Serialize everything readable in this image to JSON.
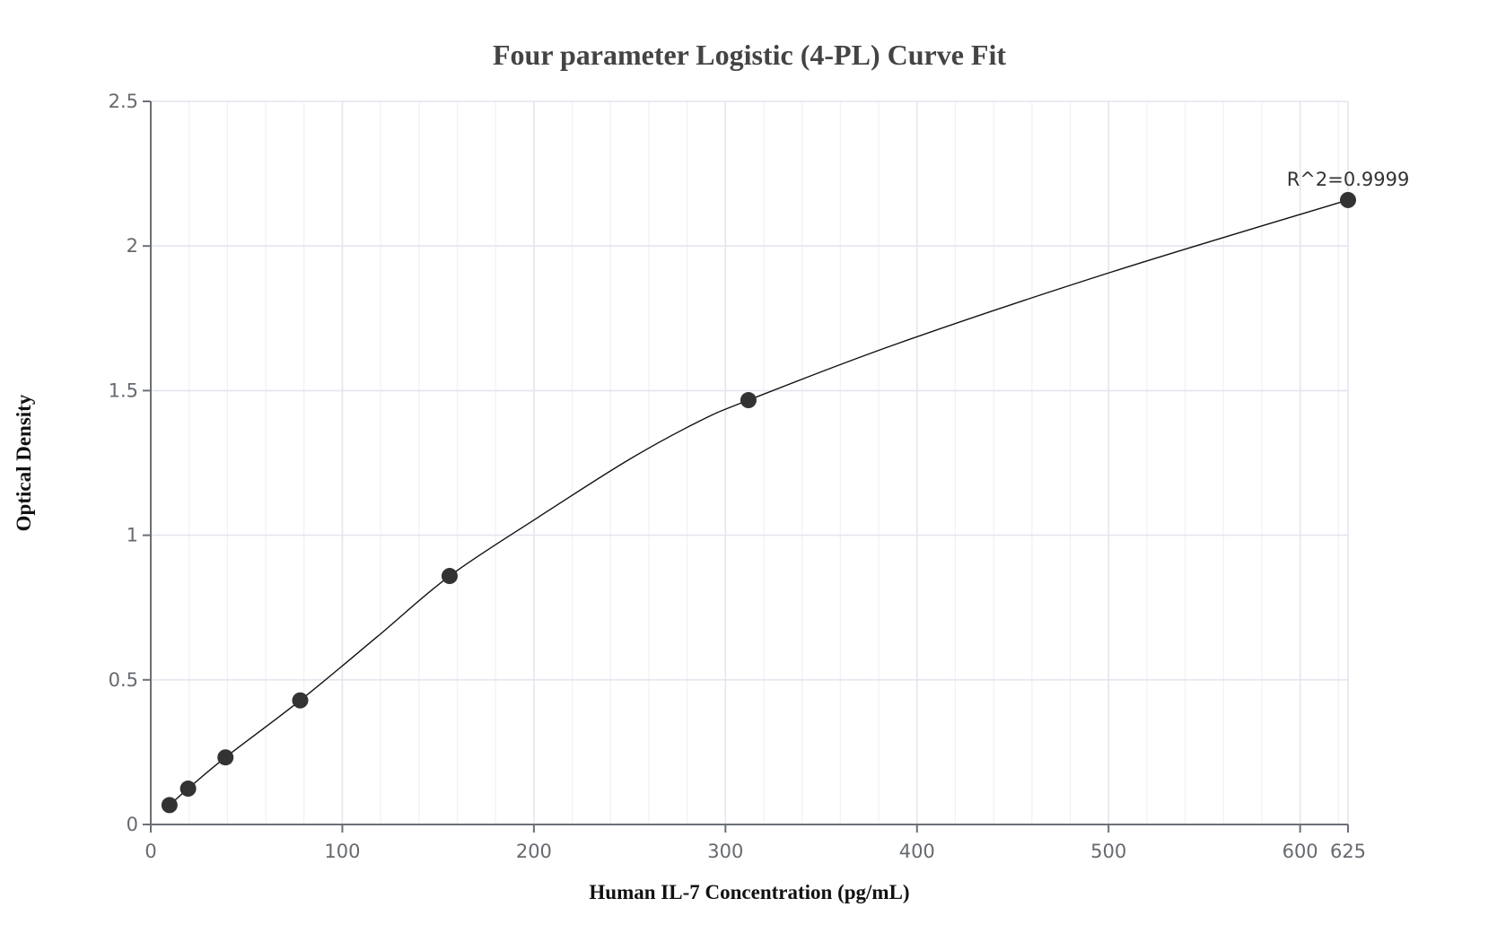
{
  "chart_data": {
    "type": "scatter",
    "title": "Four parameter Logistic (4-PL) Curve Fit",
    "xlabel": "Human IL-7 Concentration (pg/mL)",
    "ylabel": "Optical Density",
    "xlim": [
      0,
      625
    ],
    "ylim": [
      0,
      2.5
    ],
    "x_ticks": [
      0,
      100,
      200,
      300,
      400,
      500,
      600,
      625
    ],
    "x_tick_labels": [
      "0",
      "100",
      "200",
      "300",
      "400",
      "500",
      "600",
      "625"
    ],
    "y_ticks": [
      0,
      0.5,
      1,
      1.5,
      2,
      2.5
    ],
    "y_tick_labels": [
      "0",
      "0.5",
      "1",
      "1.5",
      "2",
      "2.5"
    ],
    "grid": true,
    "series": [
      {
        "name": "Standard points",
        "x": [
          9.77,
          19.5,
          39,
          78,
          156,
          312,
          625
        ],
        "y": [
          0.067,
          0.124,
          0.232,
          0.429,
          0.859,
          1.467,
          2.159
        ]
      },
      {
        "name": "4-PL fit curve",
        "type": "line",
        "x": [
          9.77,
          19.5,
          39,
          78,
          118,
          156,
          202,
          249,
          286,
          312,
          390,
          502,
          625
        ],
        "y": [
          0.067,
          0.124,
          0.232,
          0.429,
          0.648,
          0.859,
          1.061,
          1.259,
          1.393,
          1.467,
          1.663,
          1.911,
          2.159
        ]
      }
    ],
    "annotations": [
      {
        "text": "R^2=0.9999",
        "x": 625,
        "y": 2.159
      }
    ]
  },
  "labels": {
    "title": "Four parameter Logistic (4-PL) Curve Fit",
    "xlabel": "Human IL-7 Concentration (pg/mL)",
    "ylabel": "Optical Density",
    "r2": "R^2=0.9999"
  }
}
